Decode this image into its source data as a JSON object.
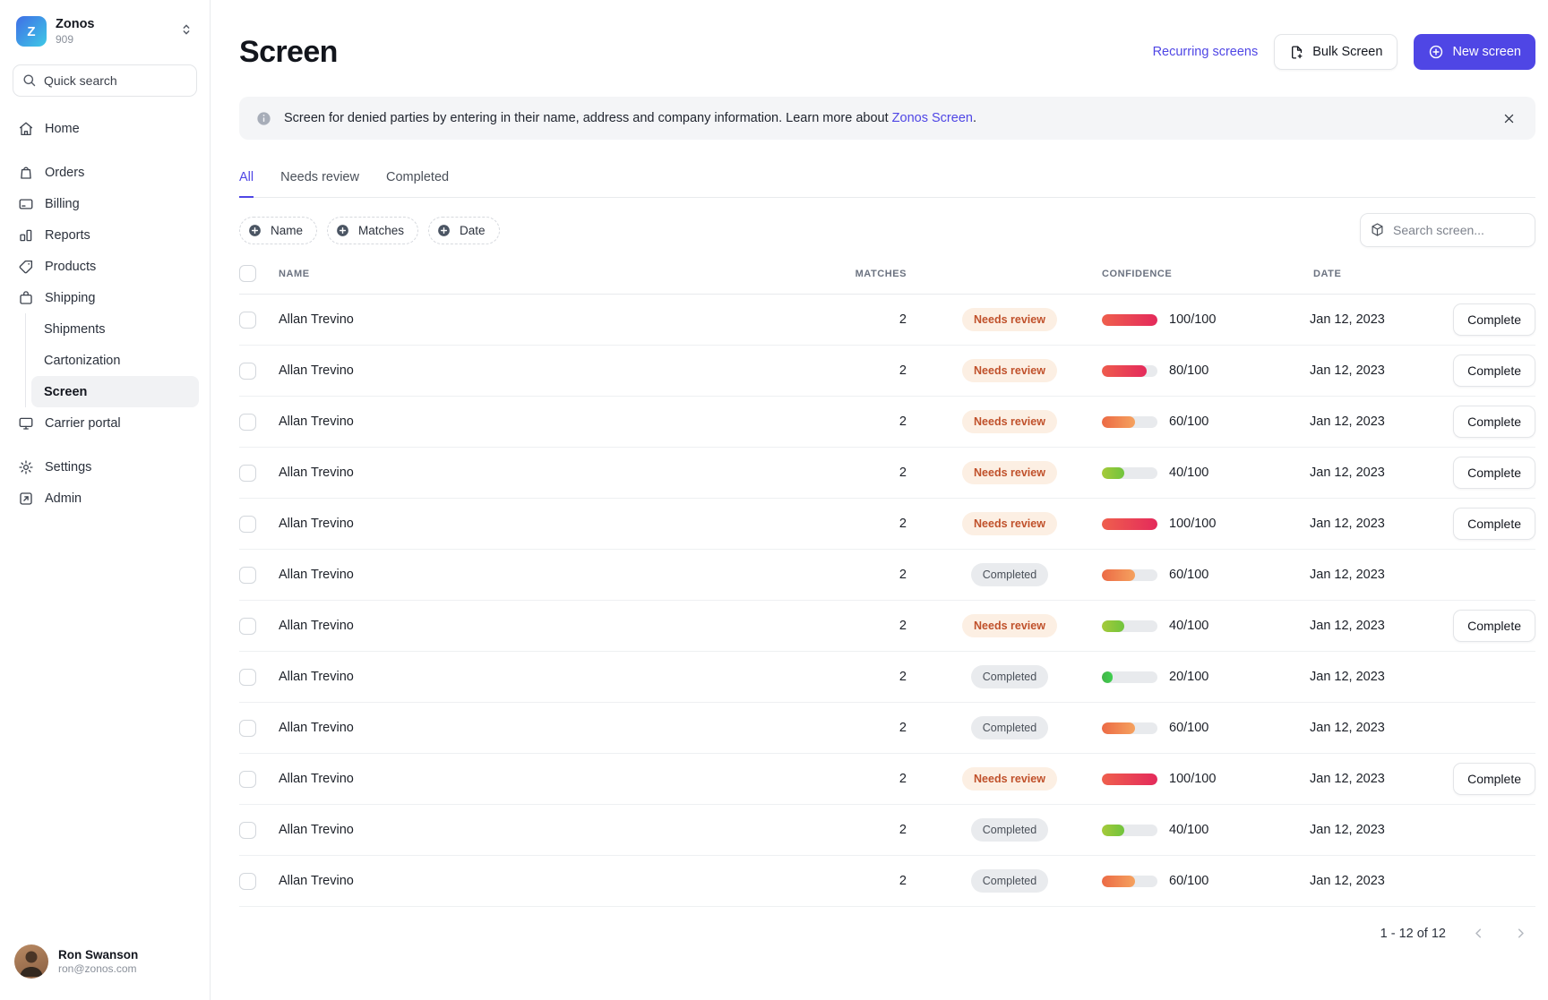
{
  "org": {
    "logo_letter": "Z",
    "name": "Zonos",
    "id": "909"
  },
  "sidebar": {
    "search_placeholder": "Quick search",
    "items": [
      {
        "label": "Home",
        "icon": "home-icon"
      },
      {
        "label": "Orders",
        "icon": "orders-bag-icon"
      },
      {
        "label": "Billing",
        "icon": "billing-card-icon"
      },
      {
        "label": "Reports",
        "icon": "reports-chart-icon"
      },
      {
        "label": "Products",
        "icon": "products-tag-icon"
      },
      {
        "label": "Shipping",
        "icon": "shipping-box-icon"
      },
      {
        "label": "Carrier portal",
        "icon": "carrier-monitor-icon"
      },
      {
        "label": "Settings",
        "icon": "settings-gear-icon"
      },
      {
        "label": "Admin",
        "icon": "admin-external-icon"
      }
    ],
    "subitems": [
      {
        "label": "Shipments",
        "active": false
      },
      {
        "label": "Cartonization",
        "active": false
      },
      {
        "label": "Screen",
        "active": true
      }
    ],
    "user": {
      "name": "Ron Swanson",
      "email": "ron@zonos.com"
    }
  },
  "header": {
    "title": "Screen",
    "recurring_link": "Recurring screens",
    "bulk_button": "Bulk Screen",
    "new_button": "New screen"
  },
  "banner": {
    "text_before": "Screen for denied parties by entering in their name, address and company information. Learn more about ",
    "link": "Zonos Screen",
    "text_after": "."
  },
  "tabs": [
    {
      "label": "All",
      "active": true
    },
    {
      "label": "Needs review",
      "active": false
    },
    {
      "label": "Completed",
      "active": false
    }
  ],
  "filters": [
    {
      "label": "Name"
    },
    {
      "label": "Matches"
    },
    {
      "label": "Date"
    }
  ],
  "search_placeholder": "Search screen...",
  "table": {
    "columns": [
      "NAME",
      "MATCHES",
      "CONFIDENCE",
      "DATE"
    ],
    "rows": [
      {
        "name": "Allan Trevino",
        "matches": "2",
        "status": "Needs review",
        "status_type": "needs-review",
        "score": 100,
        "score_label": "100/100",
        "bar_colors": [
          "#ef5f4d",
          "#e42a5b"
        ],
        "date": "Jan 12, 2023",
        "action": "Complete"
      },
      {
        "name": "Allan Trevino",
        "matches": "2",
        "status": "Needs review",
        "status_type": "needs-review",
        "score": 80,
        "score_label": "80/100",
        "bar_colors": [
          "#ee5b4d",
          "#e42a5b"
        ],
        "date": "Jan 12, 2023",
        "action": "Complete"
      },
      {
        "name": "Allan Trevino",
        "matches": "2",
        "status": "Needs review",
        "status_type": "needs-review",
        "score": 60,
        "score_label": "60/100",
        "bar_colors": [
          "#ec6a45",
          "#f5a25f"
        ],
        "date": "Jan 12, 2023",
        "action": "Complete"
      },
      {
        "name": "Allan Trevino",
        "matches": "2",
        "status": "Needs review",
        "status_type": "needs-review",
        "score": 40,
        "score_label": "40/100",
        "bar_colors": [
          "#a6ca3a",
          "#70c43d"
        ],
        "date": "Jan 12, 2023",
        "action": "Complete"
      },
      {
        "name": "Allan Trevino",
        "matches": "2",
        "status": "Needs review",
        "status_type": "needs-review",
        "score": 100,
        "score_label": "100/100",
        "bar_colors": [
          "#ef5f4d",
          "#e42a5b"
        ],
        "date": "Jan 12, 2023",
        "action": "Complete"
      },
      {
        "name": "Allan Trevino",
        "matches": "2",
        "status": "Completed",
        "status_type": "completed",
        "score": 60,
        "score_label": "60/100",
        "bar_colors": [
          "#ec6a45",
          "#f5a25f"
        ],
        "date": "Jan 12, 2023",
        "action": ""
      },
      {
        "name": "Allan Trevino",
        "matches": "2",
        "status": "Needs review",
        "status_type": "needs-review",
        "score": 40,
        "score_label": "40/100",
        "bar_colors": [
          "#a6ca3a",
          "#70c43d"
        ],
        "date": "Jan 12, 2023",
        "action": "Complete"
      },
      {
        "name": "Allan Trevino",
        "matches": "2",
        "status": "Completed",
        "status_type": "completed",
        "score": 20,
        "score_label": "20/100",
        "bar_colors": [
          "#43b549",
          "#3fcf4f"
        ],
        "date": "Jan 12, 2023",
        "action": ""
      },
      {
        "name": "Allan Trevino",
        "matches": "2",
        "status": "Completed",
        "status_type": "completed",
        "score": 60,
        "score_label": "60/100",
        "bar_colors": [
          "#ec6a45",
          "#f5a25f"
        ],
        "date": "Jan 12, 2023",
        "action": ""
      },
      {
        "name": "Allan Trevino",
        "matches": "2",
        "status": "Needs review",
        "status_type": "needs-review",
        "score": 100,
        "score_label": "100/100",
        "bar_colors": [
          "#ef5f4d",
          "#e42a5b"
        ],
        "date": "Jan 12, 2023",
        "action": "Complete"
      },
      {
        "name": "Allan Trevino",
        "matches": "2",
        "status": "Completed",
        "status_type": "completed",
        "score": 40,
        "score_label": "40/100",
        "bar_colors": [
          "#a6ca3a",
          "#70c43d"
        ],
        "date": "Jan 12, 2023",
        "action": ""
      },
      {
        "name": "Allan Trevino",
        "matches": "2",
        "status": "Completed",
        "status_type": "completed",
        "score": 60,
        "score_label": "60/100",
        "bar_colors": [
          "#ec6a45",
          "#f5a25f"
        ],
        "date": "Jan 12, 2023",
        "action": ""
      }
    ]
  },
  "pagination": {
    "label": "1 - 12 of 12"
  },
  "colors": {
    "accent": "#4f46e5",
    "needs_review_text": "#c0512b",
    "needs_review_bg": "#fcefe3",
    "completed_text": "#4a5059",
    "completed_bg": "#e9ebee",
    "bar_track": "#e8eaed",
    "logo_gradient": [
      "#3f6ee6",
      "#3ec9e6"
    ]
  }
}
